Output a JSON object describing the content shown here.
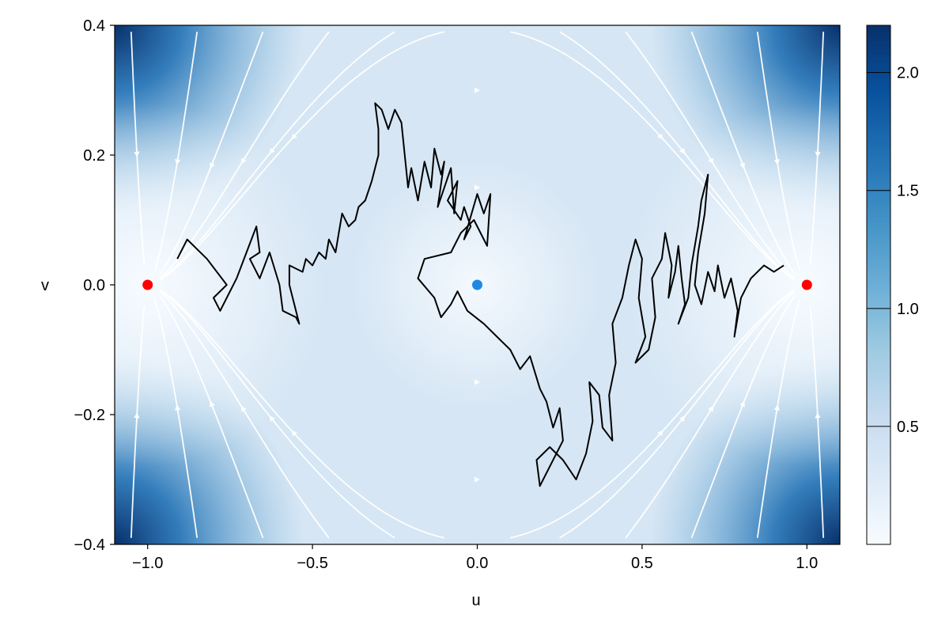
{
  "chart_data": {
    "type": "heatmap",
    "subtype": "phase-portrait streamplot with heatmap, stochastic trajectory and fixed points",
    "xlabel": "u",
    "ylabel": "v",
    "xlim": [
      -1.1,
      1.1
    ],
    "ylim": [
      -0.4,
      0.4
    ],
    "x_ticks": [
      -1.0,
      -0.5,
      0.0,
      0.5,
      1.0
    ],
    "x_tick_labels": [
      "−1.0",
      "−0.5",
      "0.0",
      "0.5",
      "1.0"
    ],
    "y_ticks": [
      -0.4,
      -0.2,
      0.0,
      0.2,
      0.4
    ],
    "y_tick_labels": [
      "−0.4",
      "−0.2",
      "0.0",
      "0.2",
      "0.4"
    ],
    "grid": false,
    "heatmap": {
      "field": "vector field magnitude",
      "colormap": "Blues",
      "colorbar_range": [
        0.0,
        2.2
      ],
      "colorbar_ticks": [
        0.5,
        1.0,
        1.5,
        2.0
      ],
      "colorbar_tick_labels": [
        "0.5",
        "1.0",
        "1.5",
        "2.0"
      ],
      "colorbar_position": "right"
    },
    "streamlines": {
      "color": "#ffffff",
      "style": "arrowed"
    },
    "fixed_points": [
      {
        "u": -1.0,
        "v": 0.0,
        "color": "#ff0000",
        "kind": "stable"
      },
      {
        "u": 0.0,
        "v": 0.0,
        "color": "#1e88e5",
        "kind": "saddle"
      },
      {
        "u": 1.0,
        "v": 0.0,
        "color": "#ff0000",
        "kind": "stable"
      }
    ],
    "trajectory": {
      "color": "#000000",
      "points": [
        [
          -0.91,
          0.04
        ],
        [
          -0.88,
          0.07
        ],
        [
          -0.82,
          0.04
        ],
        [
          -0.76,
          0.0
        ],
        [
          -0.8,
          -0.02
        ],
        [
          -0.78,
          -0.04
        ],
        [
          -0.73,
          0.01
        ],
        [
          -0.7,
          0.05
        ],
        [
          -0.67,
          0.09
        ],
        [
          -0.66,
          0.05
        ],
        [
          -0.69,
          0.04
        ],
        [
          -0.66,
          0.01
        ],
        [
          -0.63,
          0.05
        ],
        [
          -0.6,
          0.0
        ],
        [
          -0.59,
          -0.04
        ],
        [
          -0.55,
          -0.05
        ],
        [
          -0.54,
          -0.06
        ],
        [
          -0.57,
          0.0
        ],
        [
          -0.57,
          0.03
        ],
        [
          -0.53,
          0.02
        ],
        [
          -0.52,
          0.04
        ],
        [
          -0.5,
          0.03
        ],
        [
          -0.48,
          0.05
        ],
        [
          -0.46,
          0.04
        ],
        [
          -0.45,
          0.07
        ],
        [
          -0.43,
          0.05
        ],
        [
          -0.42,
          0.08
        ],
        [
          -0.41,
          0.11
        ],
        [
          -0.39,
          0.09
        ],
        [
          -0.37,
          0.1
        ],
        [
          -0.36,
          0.12
        ],
        [
          -0.34,
          0.13
        ],
        [
          -0.32,
          0.16
        ],
        [
          -0.3,
          0.2
        ],
        [
          -0.3,
          0.24
        ],
        [
          -0.31,
          0.28
        ],
        [
          -0.29,
          0.27
        ],
        [
          -0.27,
          0.24
        ],
        [
          -0.25,
          0.27
        ],
        [
          -0.23,
          0.25
        ],
        [
          -0.22,
          0.2
        ],
        [
          -0.21,
          0.15
        ],
        [
          -0.2,
          0.18
        ],
        [
          -0.18,
          0.13
        ],
        [
          -0.16,
          0.19
        ],
        [
          -0.14,
          0.15
        ],
        [
          -0.13,
          0.21
        ],
        [
          -0.11,
          0.17
        ],
        [
          -0.1,
          0.19
        ],
        [
          -0.12,
          0.12
        ],
        [
          -0.08,
          0.18
        ],
        [
          -0.07,
          0.11
        ],
        [
          -0.06,
          0.16
        ],
        [
          -0.09,
          0.13
        ],
        [
          -0.05,
          0.1
        ],
        [
          -0.04,
          0.12
        ],
        [
          -0.02,
          0.09
        ],
        [
          -0.04,
          0.07
        ],
        [
          0.0,
          0.14
        ],
        [
          0.02,
          0.11
        ],
        [
          0.04,
          0.14
        ],
        [
          0.03,
          0.06
        ],
        [
          -0.01,
          0.1
        ],
        [
          -0.05,
          0.08
        ],
        [
          -0.08,
          0.05
        ],
        [
          -0.16,
          0.04
        ],
        [
          -0.18,
          0.01
        ],
        [
          -0.13,
          -0.02
        ],
        [
          -0.11,
          -0.05
        ],
        [
          -0.08,
          -0.03
        ],
        [
          -0.06,
          -0.01
        ],
        [
          -0.03,
          -0.04
        ],
        [
          0.02,
          -0.06
        ],
        [
          0.06,
          -0.08
        ],
        [
          0.1,
          -0.1
        ],
        [
          0.13,
          -0.13
        ],
        [
          0.16,
          -0.11
        ],
        [
          0.19,
          -0.16
        ],
        [
          0.21,
          -0.18
        ],
        [
          0.23,
          -0.22
        ],
        [
          0.25,
          -0.19
        ],
        [
          0.26,
          -0.24
        ],
        [
          0.22,
          -0.28
        ],
        [
          0.19,
          -0.31
        ],
        [
          0.18,
          -0.27
        ],
        [
          0.22,
          -0.25
        ],
        [
          0.26,
          -0.27
        ],
        [
          0.3,
          -0.3
        ],
        [
          0.33,
          -0.26
        ],
        [
          0.35,
          -0.21
        ],
        [
          0.34,
          -0.15
        ],
        [
          0.37,
          -0.17
        ],
        [
          0.38,
          -0.22
        ],
        [
          0.41,
          -0.24
        ],
        [
          0.4,
          -0.17
        ],
        [
          0.42,
          -0.12
        ],
        [
          0.41,
          -0.06
        ],
        [
          0.44,
          -0.02
        ],
        [
          0.46,
          0.03
        ],
        [
          0.48,
          0.07
        ],
        [
          0.5,
          0.04
        ],
        [
          0.49,
          -0.02
        ],
        [
          0.51,
          -0.08
        ],
        [
          0.48,
          -0.12
        ],
        [
          0.52,
          -0.1
        ],
        [
          0.54,
          -0.05
        ],
        [
          0.53,
          0.01
        ],
        [
          0.56,
          0.04
        ],
        [
          0.57,
          0.08
        ],
        [
          0.59,
          0.03
        ],
        [
          0.58,
          -0.02
        ],
        [
          0.6,
          0.02
        ],
        [
          0.61,
          0.06
        ],
        [
          0.62,
          0.01
        ],
        [
          0.63,
          -0.03
        ],
        [
          0.61,
          -0.06
        ],
        [
          0.64,
          -0.02
        ],
        [
          0.65,
          0.03
        ],
        [
          0.67,
          0.09
        ],
        [
          0.68,
          0.13
        ],
        [
          0.7,
          0.17
        ],
        [
          0.69,
          0.11
        ],
        [
          0.67,
          0.05
        ],
        [
          0.66,
          0.0
        ],
        [
          0.68,
          -0.03
        ],
        [
          0.7,
          0.02
        ],
        [
          0.72,
          -0.01
        ],
        [
          0.73,
          0.03
        ],
        [
          0.75,
          -0.02
        ],
        [
          0.77,
          0.01
        ],
        [
          0.79,
          -0.04
        ],
        [
          0.78,
          -0.08
        ],
        [
          0.8,
          -0.02
        ],
        [
          0.83,
          0.01
        ],
        [
          0.87,
          0.03
        ],
        [
          0.9,
          0.02
        ],
        [
          0.93,
          0.03
        ]
      ]
    }
  }
}
